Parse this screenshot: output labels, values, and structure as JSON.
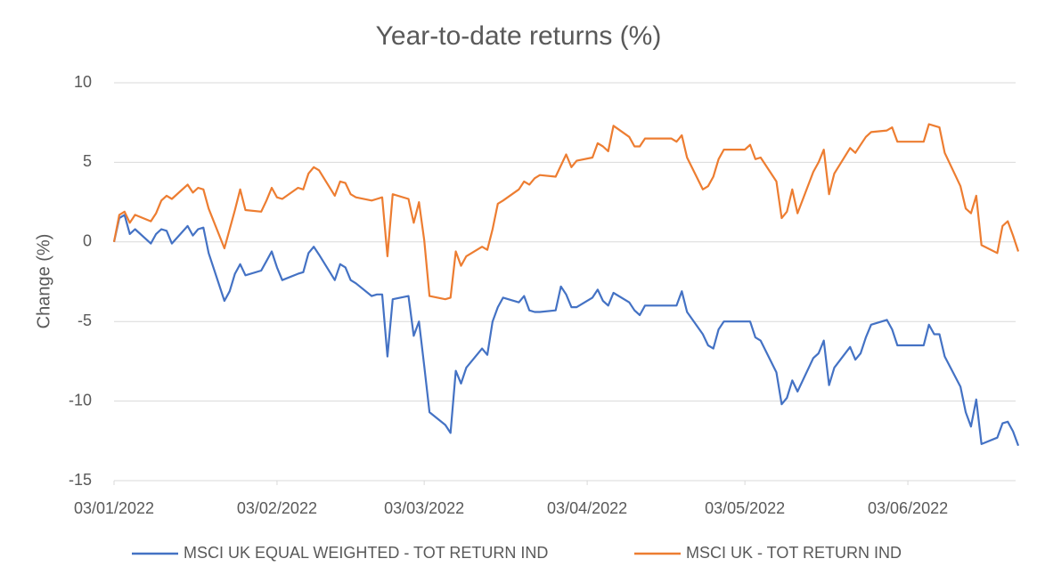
{
  "chart_data": {
    "type": "line",
    "title": "Year-to-date returns (%)",
    "y_label": "Change (%)",
    "x": [
      "2022-01-03",
      "2022-01-04",
      "2022-01-05",
      "2022-01-06",
      "2022-01-07",
      "2022-01-10",
      "2022-01-11",
      "2022-01-12",
      "2022-01-13",
      "2022-01-14",
      "2022-01-17",
      "2022-01-18",
      "2022-01-19",
      "2022-01-20",
      "2022-01-21",
      "2022-01-24",
      "2022-01-25",
      "2022-01-26",
      "2022-01-27",
      "2022-01-28",
      "2022-01-31",
      "2022-02-01",
      "2022-02-02",
      "2022-02-03",
      "2022-02-04",
      "2022-02-07",
      "2022-02-08",
      "2022-02-09",
      "2022-02-10",
      "2022-02-11",
      "2022-02-14",
      "2022-02-15",
      "2022-02-16",
      "2022-02-17",
      "2022-02-18",
      "2022-02-21",
      "2022-02-22",
      "2022-02-23",
      "2022-02-24",
      "2022-02-25",
      "2022-02-28",
      "2022-03-01",
      "2022-03-02",
      "2022-03-03",
      "2022-03-04",
      "2022-03-07",
      "2022-03-08",
      "2022-03-09",
      "2022-03-10",
      "2022-03-11",
      "2022-03-14",
      "2022-03-15",
      "2022-03-16",
      "2022-03-17",
      "2022-03-18",
      "2022-03-21",
      "2022-03-22",
      "2022-03-23",
      "2022-03-24",
      "2022-03-25",
      "2022-03-28",
      "2022-03-29",
      "2022-03-30",
      "2022-03-31",
      "2022-04-01",
      "2022-04-04",
      "2022-04-05",
      "2022-04-06",
      "2022-04-07",
      "2022-04-08",
      "2022-04-11",
      "2022-04-12",
      "2022-04-13",
      "2022-04-14",
      "2022-04-19",
      "2022-04-20",
      "2022-04-21",
      "2022-04-22",
      "2022-04-25",
      "2022-04-26",
      "2022-04-27",
      "2022-04-28",
      "2022-04-29",
      "2022-05-03",
      "2022-05-04",
      "2022-05-05",
      "2022-05-06",
      "2022-05-09",
      "2022-05-10",
      "2022-05-11",
      "2022-05-12",
      "2022-05-13",
      "2022-05-16",
      "2022-05-17",
      "2022-05-18",
      "2022-05-19",
      "2022-05-20",
      "2022-05-23",
      "2022-05-24",
      "2022-05-25",
      "2022-05-26",
      "2022-05-27",
      "2022-05-30",
      "2022-05-31",
      "2022-06-01",
      "2022-06-06",
      "2022-06-07",
      "2022-06-08",
      "2022-06-09",
      "2022-06-10",
      "2022-06-13",
      "2022-06-14",
      "2022-06-15",
      "2022-06-16",
      "2022-06-17",
      "2022-06-20",
      "2022-06-21",
      "2022-06-22",
      "2022-06-23",
      "2022-06-24"
    ],
    "series": [
      {
        "name": "MSCI UK EQUAL WEIGHTED - TOT RETURN IND",
        "color": "#4472c4",
        "values": [
          0,
          1.5,
          1.7,
          0.5,
          0.8,
          -0.1,
          0.5,
          0.8,
          0.7,
          -0.1,
          1.0,
          0.4,
          0.8,
          0.9,
          -0.7,
          -3.7,
          -3.1,
          -2.0,
          -1.4,
          -2.1,
          -1.8,
          -1.2,
          -0.6,
          -1.6,
          -2.4,
          -2.0,
          -1.9,
          -0.7,
          -0.3,
          -0.8,
          -2.4,
          -1.4,
          -1.6,
          -2.4,
          -2.6,
          -3.4,
          -3.3,
          -3.3,
          -7.2,
          -3.6,
          -3.4,
          -5.9,
          -5.0,
          -7.8,
          -10.7,
          -11.5,
          -12.0,
          -8.1,
          -8.9,
          -7.9,
          -6.7,
          -7.1,
          -5.0,
          -4.1,
          -3.5,
          -3.8,
          -3.4,
          -4.3,
          -4.4,
          -4.4,
          -4.3,
          -2.8,
          -3.3,
          -4.1,
          -4.1,
          -3.5,
          -3.0,
          -3.7,
          -4.0,
          -3.2,
          -3.8,
          -4.3,
          -4.6,
          -4.0,
          -4.0,
          -4.0,
          -3.1,
          -4.4,
          -5.8,
          -6.5,
          -6.7,
          -5.5,
          -5.0,
          -5.0,
          -5.0,
          -6.0,
          -6.2,
          -8.2,
          -10.2,
          -9.8,
          -8.7,
          -9.4,
          -7.3,
          -7.0,
          -6.2,
          -9.0,
          -7.9,
          -6.6,
          -7.4,
          -7.0,
          -6.0,
          -5.2,
          -4.9,
          -5.5,
          -6.5,
          -6.5,
          -5.2,
          -5.8,
          -5.8,
          -7.2,
          -9.1,
          -10.7,
          -11.6,
          -9.9,
          -12.7,
          -12.3,
          -11.4,
          -11.3,
          -11.9,
          -12.8
        ]
      },
      {
        "name": "MSCI UK - TOT RETURN IND",
        "color": "#ed7d31",
        "values": [
          0,
          1.7,
          1.9,
          1.2,
          1.7,
          1.3,
          1.8,
          2.6,
          2.9,
          2.7,
          3.6,
          3.1,
          3.4,
          3.3,
          2.1,
          -0.4,
          0.8,
          2.0,
          3.3,
          2.0,
          1.9,
          2.6,
          3.4,
          2.8,
          2.7,
          3.4,
          3.3,
          4.3,
          4.7,
          4.5,
          2.9,
          3.8,
          3.7,
          3.0,
          2.8,
          2.6,
          2.7,
          2.8,
          -0.9,
          3.0,
          2.7,
          1.2,
          2.5,
          0.1,
          -3.4,
          -3.6,
          -3.5,
          -0.6,
          -1.5,
          -0.9,
          -0.3,
          -0.5,
          0.8,
          2.4,
          2.6,
          3.3,
          3.8,
          3.6,
          4.0,
          4.2,
          4.1,
          4.8,
          5.5,
          4.7,
          5.1,
          5.3,
          6.2,
          6.0,
          5.7,
          7.3,
          6.6,
          6.0,
          6.0,
          6.5,
          6.5,
          6.3,
          6.7,
          5.3,
          3.3,
          3.5,
          4.1,
          5.2,
          5.8,
          5.8,
          6.1,
          5.2,
          5.3,
          3.8,
          1.5,
          1.9,
          3.3,
          1.8,
          4.4,
          5.0,
          5.8,
          3.0,
          4.3,
          5.9,
          5.6,
          6.1,
          6.6,
          6.9,
          7.0,
          7.2,
          6.3,
          6.3,
          7.4,
          7.3,
          7.2,
          5.6,
          3.5,
          2.1,
          1.8,
          2.9,
          -0.2,
          -0.7,
          1.0,
          1.3,
          0.4,
          -0.6
        ]
      }
    ],
    "xlim": [
      "2022-01-03",
      "2022-06-24"
    ],
    "xticks": [
      {
        "value": "2022-01-03",
        "label": "03/01/2022"
      },
      {
        "value": "2022-02-03",
        "label": "03/02/2022"
      },
      {
        "value": "2022-03-03",
        "label": "03/03/2022"
      },
      {
        "value": "2022-04-03",
        "label": "03/04/2022"
      },
      {
        "value": "2022-05-03",
        "label": "03/05/2022"
      },
      {
        "value": "2022-06-03",
        "label": "03/06/2022"
      }
    ],
    "ylim": [
      -15,
      10
    ],
    "yticks": [
      -15,
      -10,
      -5,
      0,
      5,
      10
    ],
    "grid": true,
    "legend": "bottom"
  }
}
